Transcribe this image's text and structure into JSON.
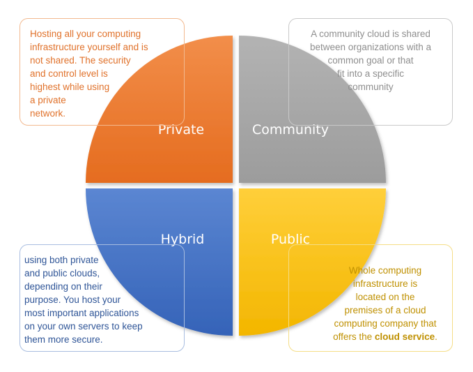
{
  "quadrants": {
    "private": {
      "label": "Private",
      "color": "#ed7d31"
    },
    "community": {
      "label": "Community",
      "color": "#a5a5a5"
    },
    "hybrid": {
      "label": "Hybrid",
      "color": "#4472c4"
    },
    "public": {
      "label": "Public",
      "color": "#ffc000"
    }
  },
  "descriptions": {
    "private": "Hosting all your computing\ninfrastructure yourself and is\nnot shared. The security\nand control level is\nhighest while using\na private\nnetwork.",
    "community": "A community cloud is shared\nbetween organizations with a\ncommon goal or that\nfit into a specific\ncommunity",
    "hybrid": "using both private\nand public clouds,\ndepending on their\npurpose. You host your\nmost important applications\non your own servers to keep\nthem more secure.",
    "public_text": "Whole computing\ninfrastructure is\nlocated on the\npremises of a cloud\ncomputing company that\noffers the ",
    "public_highlight": "cloud service",
    "public_end": "."
  }
}
